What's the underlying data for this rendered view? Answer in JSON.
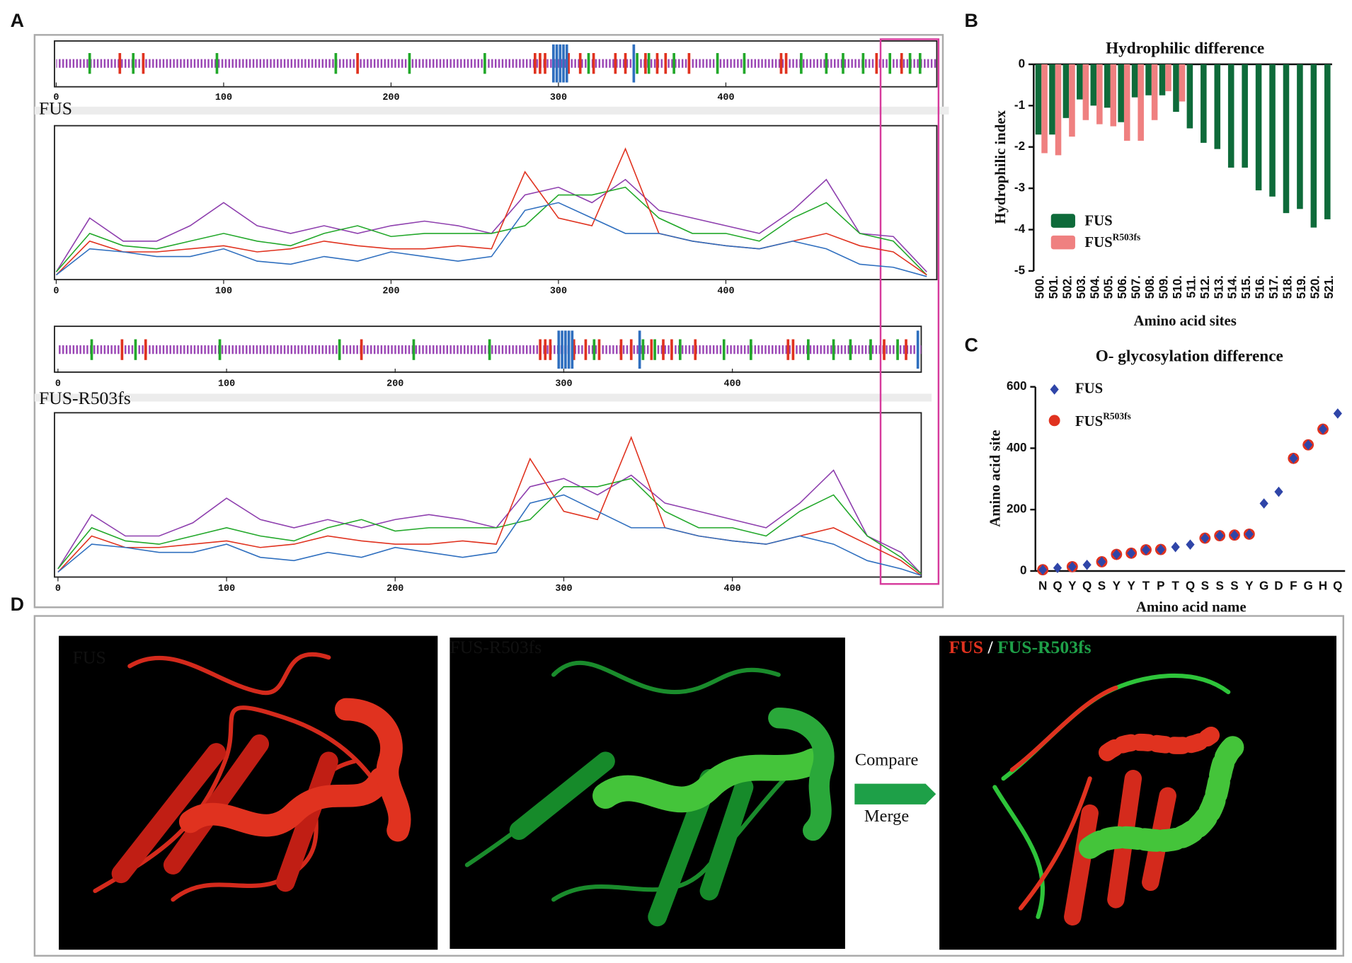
{
  "panel_letters": [
    "A",
    "B",
    "C",
    "D"
  ],
  "sequence_tracks": [
    {
      "label": "FUS",
      "xlim": [
        0,
        526
      ],
      "xticks": [
        0,
        100,
        200,
        300,
        400
      ],
      "features": [
        {
          "color": "#e0321f",
          "positions": [
            38,
            52,
            180,
            286,
            289,
            292,
            306,
            313,
            321,
            334,
            340,
            352,
            359,
            364,
            378,
            433,
            436,
            490,
            505
          ]
        },
        {
          "color": "#22a82a",
          "positions": [
            20,
            46,
            96,
            167,
            211,
            256,
            318,
            347,
            354,
            369,
            395,
            411,
            445,
            460,
            470,
            482,
            498,
            510,
            516
          ]
        },
        {
          "color": "#2f6fbf",
          "positions": [
            297,
            299,
            301,
            303,
            305,
            345
          ]
        }
      ]
    },
    {
      "label": "FUS-R503fs",
      "xlim": [
        0,
        512
      ],
      "xticks": [
        0,
        100,
        200,
        300,
        400
      ],
      "features": [
        {
          "color": "#e0321f",
          "positions": [
            38,
            52,
            180,
            286,
            289,
            292,
            306,
            313,
            321,
            334,
            340,
            352,
            359,
            364,
            378,
            433,
            436,
            490,
            503
          ]
        },
        {
          "color": "#22a82a",
          "positions": [
            20,
            46,
            96,
            167,
            211,
            256,
            318,
            347,
            354,
            369,
            395,
            411,
            445,
            460,
            470,
            482,
            498
          ]
        },
        {
          "color": "#2f6fbf",
          "positions": [
            297,
            299,
            301,
            303,
            305,
            345,
            510
          ]
        }
      ]
    }
  ],
  "chart_data": [
    {
      "type": "line",
      "xlim": [
        0,
        526
      ],
      "ylim": [
        0,
        100
      ],
      "xticks": [
        0,
        100,
        200,
        300,
        400
      ],
      "x": [
        0,
        20,
        40,
        60,
        80,
        100,
        120,
        140,
        160,
        180,
        200,
        220,
        240,
        260,
        280,
        300,
        320,
        340,
        360,
        380,
        400,
        420,
        440,
        460,
        480,
        500,
        520
      ],
      "series": [
        {
          "color": "#8e3fae",
          "values": [
            5,
            40,
            25,
            25,
            35,
            50,
            35,
            30,
            35,
            30,
            35,
            38,
            35,
            30,
            55,
            60,
            50,
            65,
            45,
            40,
            35,
            30,
            45,
            65,
            30,
            28,
            5
          ]
        },
        {
          "color": "#22a82a",
          "values": [
            5,
            30,
            22,
            20,
            25,
            30,
            25,
            22,
            30,
            35,
            28,
            30,
            30,
            30,
            35,
            55,
            55,
            60,
            40,
            30,
            30,
            25,
            40,
            50,
            30,
            25,
            3
          ]
        },
        {
          "color": "#e0321f",
          "values": [
            3,
            25,
            18,
            18,
            20,
            22,
            18,
            20,
            25,
            22,
            20,
            20,
            22,
            20,
            70,
            40,
            35,
            85,
            30,
            25,
            22,
            20,
            25,
            30,
            22,
            18,
            3
          ]
        },
        {
          "color": "#2f6fbf",
          "values": [
            3,
            20,
            18,
            15,
            15,
            20,
            12,
            10,
            15,
            12,
            18,
            15,
            12,
            15,
            45,
            50,
            40,
            30,
            30,
            25,
            22,
            20,
            25,
            20,
            10,
            8,
            2
          ]
        }
      ]
    },
    {
      "type": "line",
      "xlim": [
        0,
        512
      ],
      "ylim": [
        0,
        100
      ],
      "xticks": [
        0,
        100,
        200,
        300,
        400
      ],
      "x": [
        0,
        20,
        40,
        60,
        80,
        100,
        120,
        140,
        160,
        180,
        200,
        220,
        240,
        260,
        280,
        300,
        320,
        340,
        360,
        380,
        400,
        420,
        440,
        460,
        480,
        500,
        512
      ],
      "series": [
        {
          "color": "#8e3fae",
          "values": [
            5,
            38,
            25,
            25,
            33,
            48,
            35,
            30,
            35,
            30,
            35,
            38,
            35,
            30,
            55,
            60,
            50,
            62,
            45,
            40,
            35,
            30,
            45,
            65,
            25,
            15,
            2
          ]
        },
        {
          "color": "#22a82a",
          "values": [
            5,
            30,
            22,
            20,
            25,
            30,
            25,
            22,
            30,
            35,
            28,
            30,
            30,
            30,
            35,
            55,
            55,
            60,
            40,
            30,
            30,
            25,
            40,
            50,
            25,
            12,
            2
          ]
        },
        {
          "color": "#e0321f",
          "values": [
            3,
            25,
            18,
            18,
            20,
            22,
            18,
            20,
            25,
            22,
            20,
            20,
            22,
            20,
            72,
            40,
            35,
            85,
            30,
            25,
            22,
            20,
            25,
            30,
            20,
            10,
            1
          ]
        },
        {
          "color": "#2f6fbf",
          "values": [
            3,
            20,
            18,
            15,
            15,
            20,
            12,
            10,
            15,
            12,
            18,
            15,
            12,
            15,
            45,
            50,
            40,
            30,
            30,
            25,
            22,
            20,
            25,
            20,
            10,
            5,
            1
          ]
        }
      ]
    },
    {
      "type": "bar",
      "title": "Hydrophilic difference",
      "ylabel": "Hydrophilic index",
      "xlabel": "Amino acid sites",
      "categories": [
        "500.",
        "501.",
        "502.",
        "503.",
        "504.",
        "505.",
        "506.",
        "507.",
        "508.",
        "509.",
        "510.",
        "511.",
        "512.",
        "513.",
        "514.",
        "515.",
        "516.",
        "517.",
        "518.",
        "519.",
        "520.",
        "521."
      ],
      "ylim": [
        -5,
        0
      ],
      "yticks": [
        0,
        -1,
        -2,
        -3,
        -4,
        -5
      ],
      "series": [
        {
          "name": "FUS",
          "color": "#0e6b3a",
          "values": [
            -1.7,
            -1.7,
            -1.3,
            -0.85,
            -1.0,
            -1.05,
            -1.4,
            -0.8,
            -0.75,
            -0.75,
            -1.15,
            -1.55,
            -1.9,
            -2.05,
            -2.5,
            -2.5,
            -3.05,
            -3.2,
            -3.6,
            -3.5,
            -3.95,
            -3.75
          ]
        },
        {
          "name": "FUS",
          "name_superscript": "R503fs",
          "color": "#ef8080",
          "values": [
            -2.15,
            -2.2,
            -1.75,
            -1.35,
            -1.45,
            -1.5,
            -1.85,
            -1.85,
            -1.35,
            -0.65,
            -0.9,
            null,
            null,
            null,
            null,
            null,
            null,
            null,
            null,
            null,
            null,
            null
          ]
        }
      ]
    },
    {
      "type": "scatter",
      "title": "O- glycosylation difference",
      "ylabel": "Amino acid site",
      "xlabel": "Amino acid name",
      "categories": [
        "N",
        "Q",
        "Y",
        "Q",
        "S",
        "Y",
        "Y",
        "T",
        "P",
        "T",
        "Q",
        "S",
        "S",
        "S",
        "Y",
        "G",
        "D",
        "F",
        "G",
        "H",
        "Q"
      ],
      "ylim": [
        0,
        600
      ],
      "yticks": [
        0,
        200,
        400,
        600
      ],
      "series": [
        {
          "name": "FUS",
          "color": "#2f45a8",
          "values": [
            4,
            10,
            14,
            20,
            30,
            54,
            58,
            69,
            70,
            78,
            86,
            107,
            115,
            117,
            120,
            220,
            258,
            367,
            411,
            462,
            513
          ]
        },
        {
          "name": "FUS",
          "name_superscript": "R503fs",
          "color": "#e0321f",
          "values": [
            4,
            null,
            14,
            null,
            30,
            54,
            58,
            69,
            70,
            null,
            null,
            107,
            115,
            117,
            120,
            null,
            null,
            367,
            411,
            462,
            null
          ]
        }
      ]
    }
  ],
  "structures": {
    "fus_label": "FUS",
    "mutant_label": "FUS-R503fs",
    "merge_labels": [
      "FUS",
      "/",
      "FUS-R503fs"
    ],
    "compare": "Compare",
    "merge": "Merge"
  }
}
